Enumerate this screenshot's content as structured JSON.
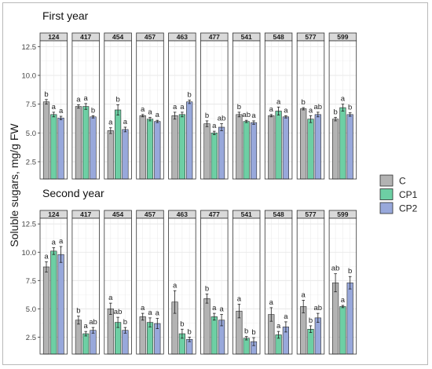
{
  "chart_data": {
    "type": "bar",
    "ylabel": "Soluble sugars, mg/g FW",
    "yticks": [
      2.5,
      5.0,
      7.5,
      10.0,
      12.5
    ],
    "ylim": [
      1.0,
      13.0
    ],
    "grid": true,
    "legend_position": "right",
    "legend": [
      {
        "name": "C",
        "color": "#b3b3b3"
      },
      {
        "name": "CP1",
        "color": "#6dcfa4"
      },
      {
        "name": "CP2",
        "color": "#98a8db"
      }
    ],
    "panels": [
      {
        "title": "First year",
        "facets": [
          {
            "label": "124",
            "values": [
              7.7,
              6.6,
              6.3
            ],
            "errors": [
              0.2,
              0.2,
              0.15
            ],
            "letters": [
              "b",
              "a",
              "a"
            ]
          },
          {
            "label": "417",
            "values": [
              7.3,
              7.3,
              6.4
            ],
            "errors": [
              0.15,
              0.25,
              0.1
            ],
            "letters": [
              "a",
              "a",
              "b"
            ]
          },
          {
            "label": "454",
            "values": [
              5.2,
              7.0,
              5.3
            ],
            "errors": [
              0.25,
              0.45,
              0.2
            ],
            "letters": [
              "a",
              "b",
              "a"
            ]
          },
          {
            "label": "457",
            "values": [
              6.5,
              6.2,
              6.0
            ],
            "errors": [
              0.1,
              0.15,
              0.1
            ],
            "letters": [
              "a",
              "a",
              "a"
            ]
          },
          {
            "label": "463",
            "values": [
              6.5,
              6.6,
              7.7
            ],
            "errors": [
              0.3,
              0.2,
              0.15
            ],
            "letters": [
              "a",
              "a",
              "b"
            ]
          },
          {
            "label": "477",
            "values": [
              5.8,
              5.0,
              5.5
            ],
            "errors": [
              0.25,
              0.15,
              0.3
            ],
            "letters": [
              "b",
              "a",
              "ab"
            ]
          },
          {
            "label": "541",
            "values": [
              6.6,
              6.0,
              5.9
            ],
            "errors": [
              0.2,
              0.1,
              0.15
            ],
            "letters": [
              "b",
              "ab",
              "a"
            ]
          },
          {
            "label": "548",
            "values": [
              6.5,
              6.9,
              6.4
            ],
            "errors": [
              0.1,
              0.35,
              0.1
            ],
            "letters": [
              "a",
              "a",
              "a"
            ]
          },
          {
            "label": "577",
            "values": [
              7.1,
              6.2,
              6.6
            ],
            "errors": [
              0.1,
              0.3,
              0.2
            ],
            "letters": [
              "b",
              "a",
              "ab"
            ]
          },
          {
            "label": "599",
            "values": [
              6.2,
              7.2,
              6.6
            ],
            "errors": [
              0.15,
              0.3,
              0.15
            ],
            "letters": [
              "b",
              "a",
              "b"
            ]
          }
        ]
      },
      {
        "title": "Second year",
        "facets": [
          {
            "label": "124",
            "values": [
              8.7,
              10.1,
              9.8
            ],
            "errors": [
              0.45,
              0.3,
              0.7
            ],
            "letters": [
              "a",
              "a",
              "a"
            ]
          },
          {
            "label": "417",
            "values": [
              4.0,
              2.8,
              3.1
            ],
            "errors": [
              0.35,
              0.2,
              0.25
            ],
            "letters": [
              "b",
              "a",
              "ab"
            ]
          },
          {
            "label": "454",
            "values": [
              5.0,
              3.8,
              3.1
            ],
            "errors": [
              0.5,
              0.45,
              0.25
            ],
            "letters": [
              "a",
              "ab",
              "b"
            ]
          },
          {
            "label": "457",
            "values": [
              4.3,
              3.8,
              3.7
            ],
            "errors": [
              0.3,
              0.4,
              0.45
            ],
            "letters": [
              "a",
              "a",
              "a"
            ]
          },
          {
            "label": "463",
            "values": [
              5.6,
              2.8,
              2.3
            ],
            "errors": [
              1.0,
              0.4,
              0.2
            ],
            "letters": [
              "a",
              "b",
              "b"
            ]
          },
          {
            "label": "477",
            "values": [
              5.9,
              4.3,
              4.0
            ],
            "errors": [
              0.4,
              0.3,
              0.5
            ],
            "letters": [
              "b",
              "a",
              "a"
            ]
          },
          {
            "label": "541",
            "values": [
              4.8,
              2.4,
              2.1
            ],
            "errors": [
              0.6,
              0.15,
              0.35
            ],
            "letters": [
              "a",
              "b",
              "b"
            ]
          },
          {
            "label": "548",
            "values": [
              4.5,
              2.7,
              3.4
            ],
            "errors": [
              0.6,
              0.3,
              0.45
            ],
            "letters": [
              "a",
              "a",
              "a"
            ]
          },
          {
            "label": "577",
            "values": [
              5.2,
              3.2,
              4.2
            ],
            "errors": [
              0.55,
              0.3,
              0.4
            ],
            "letters": [
              "a",
              "b",
              "ab"
            ]
          },
          {
            "label": "599",
            "values": [
              7.3,
              5.2,
              7.3
            ],
            "errors": [
              0.8,
              0.1,
              0.55
            ],
            "letters": [
              "ab",
              "a",
              "b"
            ]
          }
        ]
      }
    ]
  }
}
